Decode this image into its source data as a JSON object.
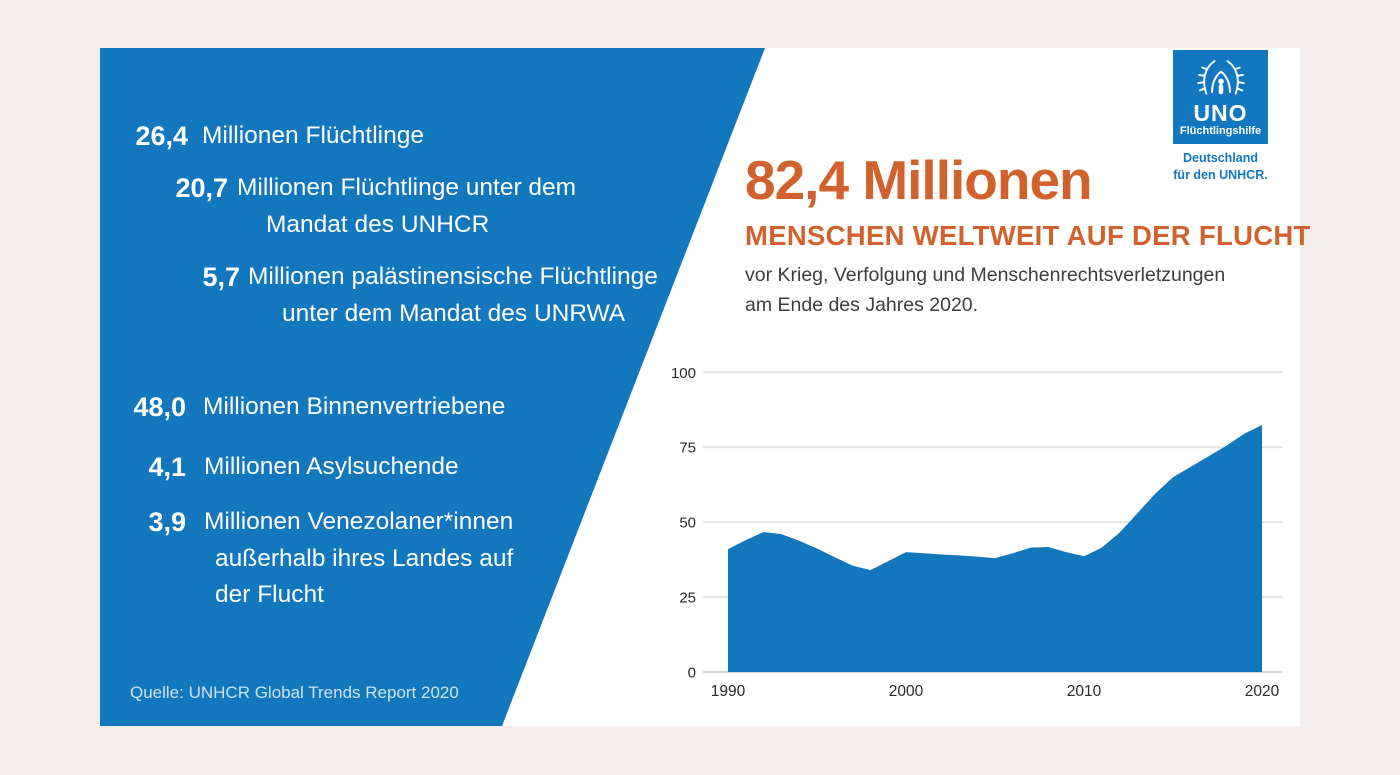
{
  "panel": {
    "stats": [
      {
        "value": "26,4",
        "lines": [
          "Millionen Flüchtlinge"
        ]
      },
      {
        "value": "20,7",
        "lines": [
          "Millionen Flüchtlinge unter dem",
          "Mandat des UNHCR"
        ]
      },
      {
        "value": "5,7",
        "lines": [
          "Millionen palästinensische Flüchtlinge",
          "unter dem Mandat des UNRWA"
        ]
      },
      {
        "value": "48,0",
        "lines": [
          "Millionen Binnenvertriebene"
        ]
      },
      {
        "value": "4,1",
        "lines": [
          "Millionen Asylsuchende"
        ]
      },
      {
        "value": "3,9",
        "lines": [
          "Millionen Venezolaner*innen",
          "außerhalb ihres Landes auf",
          "der Flucht"
        ]
      }
    ],
    "source": "Quelle: UNHCR Global Trends Report 2020"
  },
  "header": {
    "headline_number": "82,4 Millionen",
    "headline_sub": "MENSCHEN WELTWEIT AUF DER FLUCHT",
    "description_line1": "vor Krieg, Verfolgung und Menschenrechtsverletzungen",
    "description_line2": "am Ende des Jahres 2020."
  },
  "logo": {
    "org_top": "UNO",
    "org_bottom": "Flüchtlingshilfe",
    "tagline_line1": "Deutschland",
    "tagline_line2": "für den UNHCR."
  },
  "colors": {
    "panel_blue": "#1377bd",
    "logo_blue": "#1177c0",
    "accent_orange": "#d2622d",
    "body_text": "#3d3d3d",
    "outer_background": "#f3eeed",
    "gridline": "#e6e3e2",
    "baseline": "#d8d5d4",
    "tick_text": "#2a2a2a"
  },
  "chart_data": {
    "type": "area",
    "x": [
      1990,
      1991,
      1992,
      1993,
      1994,
      1995,
      1996,
      1997,
      1998,
      1999,
      2000,
      2001,
      2002,
      2003,
      2004,
      2005,
      2006,
      2007,
      2008,
      2009,
      2010,
      2011,
      2012,
      2013,
      2014,
      2015,
      2016,
      2017,
      2018,
      2019,
      2020
    ],
    "values": [
      41.0,
      44.0,
      46.7,
      46.0,
      43.8,
      41.2,
      38.3,
      35.5,
      34.0,
      37.0,
      40.0,
      39.6,
      39.2,
      38.9,
      38.5,
      38.0,
      39.6,
      41.5,
      41.7,
      40.0,
      38.6,
      41.5,
      46.5,
      53.0,
      59.5,
      65.0,
      68.5,
      72.0,
      75.5,
      79.5,
      82.4
    ],
    "x_ticks": [
      1990,
      2000,
      2010,
      2020
    ],
    "y_ticks": [
      0,
      25,
      50,
      75,
      100
    ],
    "xlim": [
      1990,
      2020
    ],
    "ylim": [
      0,
      100
    ],
    "grid": true,
    "legend": false,
    "xlabel": "",
    "ylabel": "",
    "area_color": "#1377bd"
  }
}
